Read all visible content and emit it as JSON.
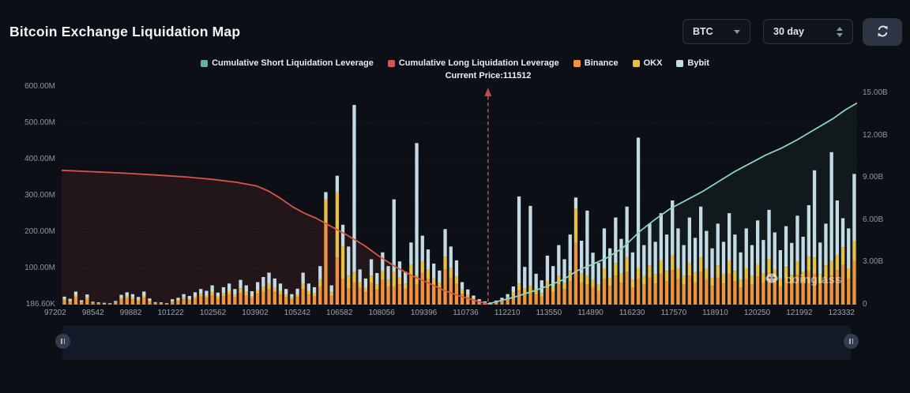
{
  "header": {
    "title": "Bitcoin Exchange Liquidation Map"
  },
  "controls": {
    "symbol_select": {
      "value": "BTC",
      "icon": "caret-down-icon"
    },
    "range_select": {
      "value": "30 day",
      "icon": "stepper-icon"
    },
    "refresh": {
      "icon": "refresh-icon"
    }
  },
  "legend": [
    {
      "label": "Cumulative Short Liquidation Leverage",
      "color": "#66b3a1"
    },
    {
      "label": "Cumulative Long Liquidation Leverage",
      "color": "#d9544a"
    },
    {
      "label": "Binance",
      "color": "#ef943d"
    },
    {
      "label": "OKX",
      "color": "#e8c142"
    },
    {
      "label": "Bybit",
      "color": "#c3dbe4"
    }
  ],
  "watermark": "coinglass",
  "chart_data": {
    "type": "bar",
    "subtype": "stacked-bars-with-cumulative-lines",
    "title": "Bitcoin Exchange Liquidation Map",
    "grid": "dotted-horizontal",
    "x_ticks": [
      "97202",
      "98542",
      "99882",
      "101222",
      "102562",
      "103902",
      "105242",
      "106582",
      "108056",
      "109396",
      "110736",
      "112210",
      "113550",
      "114890",
      "116230",
      "117570",
      "118910",
      "120250",
      "121992",
      "123332"
    ],
    "left_axis": {
      "unit": "M",
      "max": 600,
      "labels": [
        "600.00M",
        "500.00M",
        "400.00M",
        "300.00M",
        "200.00M",
        "100.00M",
        "186.60K"
      ]
    },
    "right_axis": {
      "unit": "B",
      "max": 15,
      "labels": [
        "15.00B",
        "12.00B",
        "9.00B",
        "6.00B",
        "3.00B",
        "0"
      ]
    },
    "current_price": {
      "label": "Current Price:111512",
      "value": 111512,
      "frac": 0.536,
      "color": "#c04848"
    },
    "bar_series_names": [
      "Binance",
      "OKX",
      "Bybit"
    ],
    "bar_colors": [
      "#ef943d",
      "#e8c142",
      "#c3dbe4"
    ],
    "bars_unit": "millions USD per price level, stacked [Binance, OKX, Bybit]",
    "bars": [
      [
        12,
        4,
        6
      ],
      [
        8,
        3,
        5
      ],
      [
        20,
        6,
        10
      ],
      [
        6,
        2,
        4
      ],
      [
        14,
        5,
        9
      ],
      [
        4,
        2,
        2
      ],
      [
        3,
        1,
        2
      ],
      [
        2,
        1,
        2
      ],
      [
        2,
        1,
        1
      ],
      [
        5,
        2,
        3
      ],
      [
        14,
        5,
        8
      ],
      [
        18,
        6,
        10
      ],
      [
        15,
        5,
        9
      ],
      [
        10,
        4,
        7
      ],
      [
        19,
        6,
        11
      ],
      [
        9,
        3,
        5
      ],
      [
        4,
        1,
        2
      ],
      [
        3,
        1,
        2
      ],
      [
        2,
        1,
        1
      ],
      [
        7,
        3,
        5
      ],
      [
        10,
        3,
        6
      ],
      [
        15,
        5,
        9
      ],
      [
        12,
        4,
        8
      ],
      [
        17,
        6,
        11
      ],
      [
        22,
        7,
        14
      ],
      [
        19,
        6,
        13
      ],
      [
        26,
        9,
        18
      ],
      [
        16,
        6,
        11
      ],
      [
        24,
        8,
        16
      ],
      [
        28,
        10,
        20
      ],
      [
        21,
        7,
        15
      ],
      [
        33,
        11,
        24
      ],
      [
        26,
        9,
        18
      ],
      [
        18,
        6,
        13
      ],
      [
        30,
        10,
        22
      ],
      [
        36,
        13,
        27
      ],
      [
        42,
        15,
        31
      ],
      [
        34,
        12,
        26
      ],
      [
        28,
        10,
        20
      ],
      [
        21,
        7,
        15
      ],
      [
        14,
        5,
        10
      ],
      [
        21,
        7,
        16
      ],
      [
        42,
        15,
        31
      ],
      [
        28,
        10,
        20
      ],
      [
        23,
        8,
        17
      ],
      [
        50,
        18,
        38
      ],
      [
        220,
        70,
        20
      ],
      [
        25,
        9,
        19
      ],
      [
        130,
        180,
        45
      ],
      [
        70,
        90,
        60
      ],
      [
        45,
        35,
        80
      ],
      [
        60,
        30,
        460
      ],
      [
        46,
        16,
        35
      ],
      [
        34,
        12,
        26
      ],
      [
        59,
        21,
        45
      ],
      [
        41,
        15,
        31
      ],
      [
        68,
        24,
        52
      ],
      [
        50,
        18,
        38
      ],
      [
        50,
        40,
        200
      ],
      [
        56,
        20,
        43
      ],
      [
        43,
        15,
        33
      ],
      [
        80,
        29,
        62
      ],
      [
        55,
        25,
        365
      ],
      [
        88,
        32,
        70
      ],
      [
        71,
        26,
        55
      ],
      [
        53,
        19,
        41
      ],
      [
        44,
        16,
        34
      ],
      [
        97,
        35,
        76
      ],
      [
        75,
        27,
        58
      ],
      [
        57,
        21,
        44
      ],
      [
        30,
        12,
        20
      ],
      [
        20,
        8,
        14
      ],
      [
        12,
        5,
        8
      ],
      [
        7,
        3,
        5
      ],
      [
        4,
        2,
        3
      ],
      [
        3,
        1,
        2
      ],
      [
        5,
        2,
        4
      ],
      [
        9,
        4,
        6
      ],
      [
        14,
        6,
        9
      ],
      [
        24,
        10,
        16
      ],
      [
        40,
        18,
        240
      ],
      [
        30,
        14,
        60
      ],
      [
        36,
        16,
        220
      ],
      [
        28,
        12,
        45
      ],
      [
        22,
        10,
        35
      ],
      [
        45,
        20,
        70
      ],
      [
        35,
        16,
        55
      ],
      [
        55,
        24,
        85
      ],
      [
        42,
        18,
        65
      ],
      [
        65,
        28,
        100
      ],
      [
        170,
        95,
        30
      ],
      [
        60,
        26,
        90
      ],
      [
        55,
        24,
        180
      ],
      [
        48,
        20,
        75
      ],
      [
        38,
        17,
        60
      ],
      [
        70,
        30,
        110
      ],
      [
        52,
        23,
        80
      ],
      [
        80,
        35,
        125
      ],
      [
        60,
        26,
        95
      ],
      [
        90,
        40,
        140
      ],
      [
        48,
        21,
        75
      ],
      [
        70,
        30,
        360
      ],
      [
        55,
        24,
        85
      ],
      [
        75,
        33,
        115
      ],
      [
        58,
        25,
        90
      ],
      [
        85,
        37,
        130
      ],
      [
        65,
        28,
        100
      ],
      [
        95,
        42,
        150
      ],
      [
        70,
        30,
        110
      ],
      [
        55,
        24,
        85
      ],
      [
        80,
        35,
        125
      ],
      [
        62,
        27,
        95
      ],
      [
        90,
        40,
        140
      ],
      [
        68,
        30,
        105
      ],
      [
        52,
        23,
        80
      ],
      [
        75,
        33,
        115
      ],
      [
        58,
        25,
        90
      ],
      [
        85,
        37,
        130
      ],
      [
        65,
        28,
        100
      ],
      [
        48,
        21,
        75
      ],
      [
        70,
        30,
        110
      ],
      [
        55,
        24,
        85
      ],
      [
        78,
        34,
        120
      ],
      [
        60,
        26,
        92
      ],
      [
        88,
        38,
        135
      ],
      [
        67,
        29,
        103
      ],
      [
        50,
        22,
        78
      ],
      [
        72,
        32,
        112
      ],
      [
        57,
        25,
        88
      ],
      [
        82,
        36,
        127
      ],
      [
        63,
        27,
        97
      ],
      [
        92,
        40,
        142
      ],
      [
        85,
        45,
        240
      ],
      [
        58,
        25,
        88
      ],
      [
        75,
        33,
        115
      ],
      [
        80,
        40,
        300
      ],
      [
        95,
        42,
        150
      ],
      [
        110,
        48,
        80
      ],
      [
        70,
        30,
        110
      ],
      [
        120,
        55,
        185
      ]
    ],
    "lines": [
      {
        "name": "Cumulative Long Liquidation Leverage",
        "axis": "left",
        "unit": "M",
        "color": "#d9544a",
        "fill": "rgba(217,84,74,0.11)",
        "points": [
          [
            0,
            370
          ],
          [
            0.04,
            366
          ],
          [
            0.08,
            362
          ],
          [
            0.12,
            357
          ],
          [
            0.16,
            351
          ],
          [
            0.19,
            345
          ],
          [
            0.22,
            337
          ],
          [
            0.245,
            327
          ],
          [
            0.26,
            313
          ],
          [
            0.275,
            293
          ],
          [
            0.29,
            270
          ],
          [
            0.305,
            252
          ],
          [
            0.32,
            238
          ],
          [
            0.34,
            214
          ],
          [
            0.36,
            190
          ],
          [
            0.38,
            164
          ],
          [
            0.4,
            132
          ],
          [
            0.42,
            104
          ],
          [
            0.44,
            80
          ],
          [
            0.46,
            61
          ],
          [
            0.48,
            40
          ],
          [
            0.5,
            24
          ],
          [
            0.52,
            11
          ],
          [
            0.536,
            2
          ]
        ]
      },
      {
        "name": "Cumulative Short Liquidation Leverage",
        "axis": "right",
        "unit": "B",
        "color": "#8ed3c2",
        "fill": "rgba(126,206,190,0.05)",
        "points": [
          [
            0.536,
            0.05
          ],
          [
            0.55,
            0.25
          ],
          [
            0.57,
            0.55
          ],
          [
            0.59,
            0.9
          ],
          [
            0.61,
            1.3
          ],
          [
            0.63,
            1.75
          ],
          [
            0.648,
            2.4
          ],
          [
            0.665,
            2.8
          ],
          [
            0.685,
            3.3
          ],
          [
            0.705,
            4.0
          ],
          [
            0.727,
            5.2
          ],
          [
            0.745,
            6.0
          ],
          [
            0.765,
            6.8
          ],
          [
            0.785,
            7.4
          ],
          [
            0.805,
            8.0
          ],
          [
            0.825,
            8.7
          ],
          [
            0.845,
            9.4
          ],
          [
            0.865,
            10.0
          ],
          [
            0.885,
            10.6
          ],
          [
            0.905,
            11.1
          ],
          [
            0.925,
            11.7
          ],
          [
            0.94,
            12.2
          ],
          [
            0.955,
            12.7
          ],
          [
            0.97,
            13.2
          ],
          [
            0.985,
            13.8
          ],
          [
            1,
            14.3
          ]
        ]
      }
    ]
  }
}
